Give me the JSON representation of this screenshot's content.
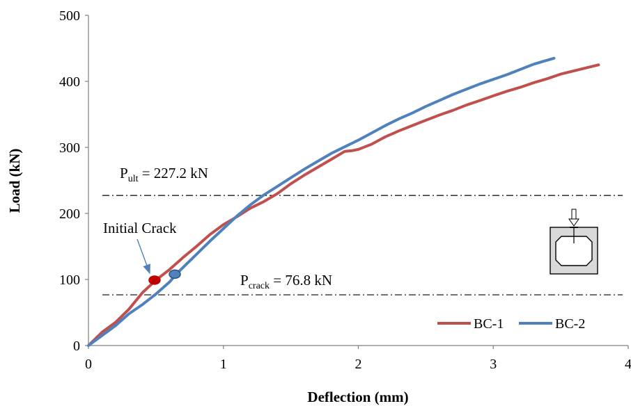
{
  "chart_data": {
    "type": "line",
    "xlabel": "Deflection (mm)",
    "ylabel": "Load (kN)",
    "xlim": [
      0,
      4
    ],
    "ylim": [
      0,
      500
    ],
    "xticks": [
      "0",
      "1",
      "2",
      "3",
      "4"
    ],
    "yticks": [
      "0",
      "100",
      "200",
      "300",
      "400",
      "500"
    ],
    "grid": false,
    "legend_position": "bottom-right",
    "series": [
      {
        "name": "BC-1",
        "color": "#c0504d",
        "points": [
          [
            0,
            0
          ],
          [
            0.05,
            10
          ],
          [
            0.1,
            20
          ],
          [
            0.2,
            35
          ],
          [
            0.3,
            55
          ],
          [
            0.4,
            80
          ],
          [
            0.5,
            99
          ],
          [
            0.6,
            115
          ],
          [
            0.7,
            133
          ],
          [
            0.8,
            150
          ],
          [
            0.9,
            168
          ],
          [
            1.0,
            183
          ],
          [
            1.1,
            195
          ],
          [
            1.2,
            208
          ],
          [
            1.3,
            218
          ],
          [
            1.4,
            230
          ],
          [
            1.5,
            245
          ],
          [
            1.6,
            258
          ],
          [
            1.7,
            270
          ],
          [
            1.8,
            282
          ],
          [
            1.9,
            294
          ],
          [
            1.95,
            295
          ],
          [
            2.0,
            297
          ],
          [
            2.1,
            305
          ],
          [
            2.2,
            316
          ],
          [
            2.3,
            325
          ],
          [
            2.4,
            333
          ],
          [
            2.5,
            341
          ],
          [
            2.6,
            349
          ],
          [
            2.7,
            356
          ],
          [
            2.8,
            364
          ],
          [
            2.9,
            371
          ],
          [
            3.0,
            378
          ],
          [
            3.1,
            385
          ],
          [
            3.2,
            391
          ],
          [
            3.3,
            398
          ],
          [
            3.4,
            404
          ],
          [
            3.5,
            411
          ],
          [
            3.6,
            416
          ],
          [
            3.7,
            421
          ],
          [
            3.78,
            425
          ]
        ]
      },
      {
        "name": "BC-2",
        "color": "#4f81bd",
        "points": [
          [
            0,
            0
          ],
          [
            0.1,
            15
          ],
          [
            0.2,
            30
          ],
          [
            0.3,
            48
          ],
          [
            0.4,
            62
          ],
          [
            0.5,
            78
          ],
          [
            0.6,
            96
          ],
          [
            0.65,
            108
          ],
          [
            0.7,
            118
          ],
          [
            0.8,
            138
          ],
          [
            0.9,
            158
          ],
          [
            1.0,
            177
          ],
          [
            1.1,
            196
          ],
          [
            1.2,
            213
          ],
          [
            1.3,
            228
          ],
          [
            1.4,
            241
          ],
          [
            1.5,
            254
          ],
          [
            1.6,
            267
          ],
          [
            1.7,
            279
          ],
          [
            1.8,
            291
          ],
          [
            1.9,
            301
          ],
          [
            2.0,
            311
          ],
          [
            2.1,
            322
          ],
          [
            2.2,
            333
          ],
          [
            2.3,
            343
          ],
          [
            2.4,
            352
          ],
          [
            2.5,
            362
          ],
          [
            2.6,
            371
          ],
          [
            2.7,
            380
          ],
          [
            2.8,
            388
          ],
          [
            2.9,
            396
          ],
          [
            3.0,
            403
          ],
          [
            3.1,
            410
          ],
          [
            3.2,
            418
          ],
          [
            3.3,
            426
          ],
          [
            3.4,
            432
          ],
          [
            3.45,
            435
          ]
        ]
      }
    ],
    "reference_lines": [
      {
        "y": 227.2,
        "label_main": "P",
        "label_sub": "ult",
        "label_rest": " = 227.2 kN"
      },
      {
        "y": 76.8,
        "label_main": "P",
        "label_sub": "crack",
        "label_rest": " = 76.8 kN"
      }
    ],
    "markers": [
      {
        "series": "BC-1",
        "x": 0.49,
        "y": 99,
        "color": "#c00000"
      },
      {
        "series": "BC-2",
        "x": 0.64,
        "y": 108,
        "color": "#4f81bd"
      }
    ],
    "annotation": {
      "text": "Initial Crack",
      "points_to": [
        0.45,
        95
      ]
    },
    "inset_icon": "box-girder-cross-section-icon"
  }
}
